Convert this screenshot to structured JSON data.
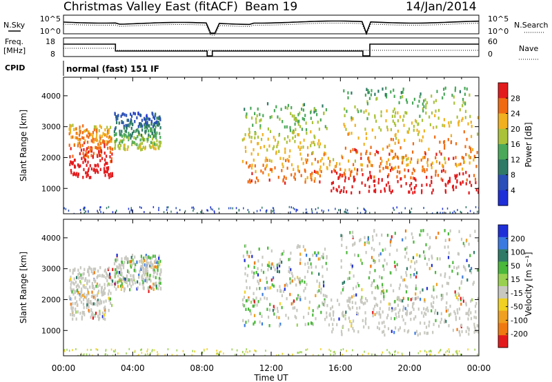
{
  "header": {
    "station": "Christmas Valley East (fitACF)",
    "beam": "Beam 19",
    "date": "14/Jan/2014"
  },
  "panels": {
    "nsky_label": "N.Sky",
    "nsearch_label": "N.Search",
    "freq_label_1": "Freq.",
    "freq_label_2": "[MHz]",
    "nave_label": "Nave",
    "cpid_label": "CPID",
    "cpid_text": "normal (fast) 151 IF",
    "nsky_ticks": [
      "10^5",
      "10^0"
    ],
    "nsearch_ticks": [
      "10^5",
      "10^0"
    ],
    "freq_ticks": [
      "18",
      "8"
    ],
    "nave_ticks": [
      "60",
      "0"
    ]
  },
  "chart_data": [
    {
      "type": "heatmap",
      "title": "",
      "quantity": "Power",
      "xlabel": "Time UT",
      "ylabel": "Slant Range [km]",
      "x_tick_labels": [
        "00:00",
        "04:00",
        "08:00",
        "12:00",
        "16:00",
        "20:00",
        "00:00"
      ],
      "x_range_hours": [
        0,
        24
      ],
      "y_ticks": [
        1000,
        2000,
        3000,
        4000
      ],
      "y_range_km": [
        180,
        4600
      ],
      "colorbar": {
        "label": "Power [dB]",
        "ticks": [
          "4",
          "8",
          "12",
          "16",
          "20",
          "24",
          "28"
        ],
        "range": [
          0,
          32
        ],
        "colors": [
          "#1f2fd8",
          "#2a4fb8",
          "#2f7a66",
          "#4aa85a",
          "#a9c23a",
          "#f0b020",
          "#f06a12",
          "#e31a1c"
        ]
      },
      "echo_regions": [
        {
          "t_start": 0.3,
          "t_end": 2.8,
          "range_start": 1400,
          "range_end": 3100,
          "level": "strong"
        },
        {
          "t_start": 2.9,
          "t_end": 5.6,
          "range_start": 2300,
          "range_end": 3500,
          "level": "weak"
        },
        {
          "t_start": 10.3,
          "t_end": 15.2,
          "range_start": 1200,
          "range_end": 3800,
          "level": "moderate"
        },
        {
          "t_start": 15.2,
          "t_end": 24.0,
          "range_start": 900,
          "range_end": 2100,
          "level": "strong"
        },
        {
          "t_start": 16.0,
          "t_end": 24.0,
          "range_start": 2000,
          "range_end": 4300,
          "level": "moderate"
        }
      ]
    },
    {
      "type": "heatmap",
      "title": "",
      "quantity": "Velocity",
      "xlabel": "Time UT",
      "ylabel": "Slant Range [km]",
      "x_tick_labels": [
        "00:00",
        "04:00",
        "08:00",
        "12:00",
        "16:00",
        "20:00",
        "00:00"
      ],
      "x_range_hours": [
        0,
        24
      ],
      "y_ticks": [
        1000,
        2000,
        3000,
        4000
      ],
      "y_range_km": [
        180,
        4600
      ],
      "colorbar": {
        "label": "Velocity [m s⁻¹]",
        "ticks": [
          "200",
          "100",
          "50",
          "15",
          "-15",
          "-50",
          "-100",
          "-200"
        ],
        "range": [
          -250,
          250
        ],
        "colors": [
          "#1f2fd8",
          "#3a7ae0",
          "#2f7a66",
          "#4ab83a",
          "#9ad050",
          "#c8c8c0",
          "#f0d020",
          "#f0a020",
          "#f07a12",
          "#e31a1c"
        ]
      },
      "echo_regions": [
        {
          "t_start": 0.3,
          "t_end": 2.8,
          "range_start": 1400,
          "range_end": 3100,
          "level": "ground"
        },
        {
          "t_start": 2.9,
          "t_end": 5.6,
          "range_start": 2300,
          "range_end": 3500,
          "level": "mixed"
        },
        {
          "t_start": 10.3,
          "t_end": 15.2,
          "range_start": 1200,
          "range_end": 3800,
          "level": "mixed"
        },
        {
          "t_start": 15.2,
          "t_end": 24.0,
          "range_start": 900,
          "range_end": 2100,
          "level": "ground"
        },
        {
          "t_start": 16.0,
          "t_end": 24.0,
          "range_start": 2000,
          "range_end": 4300,
          "level": "mixed"
        }
      ]
    }
  ]
}
